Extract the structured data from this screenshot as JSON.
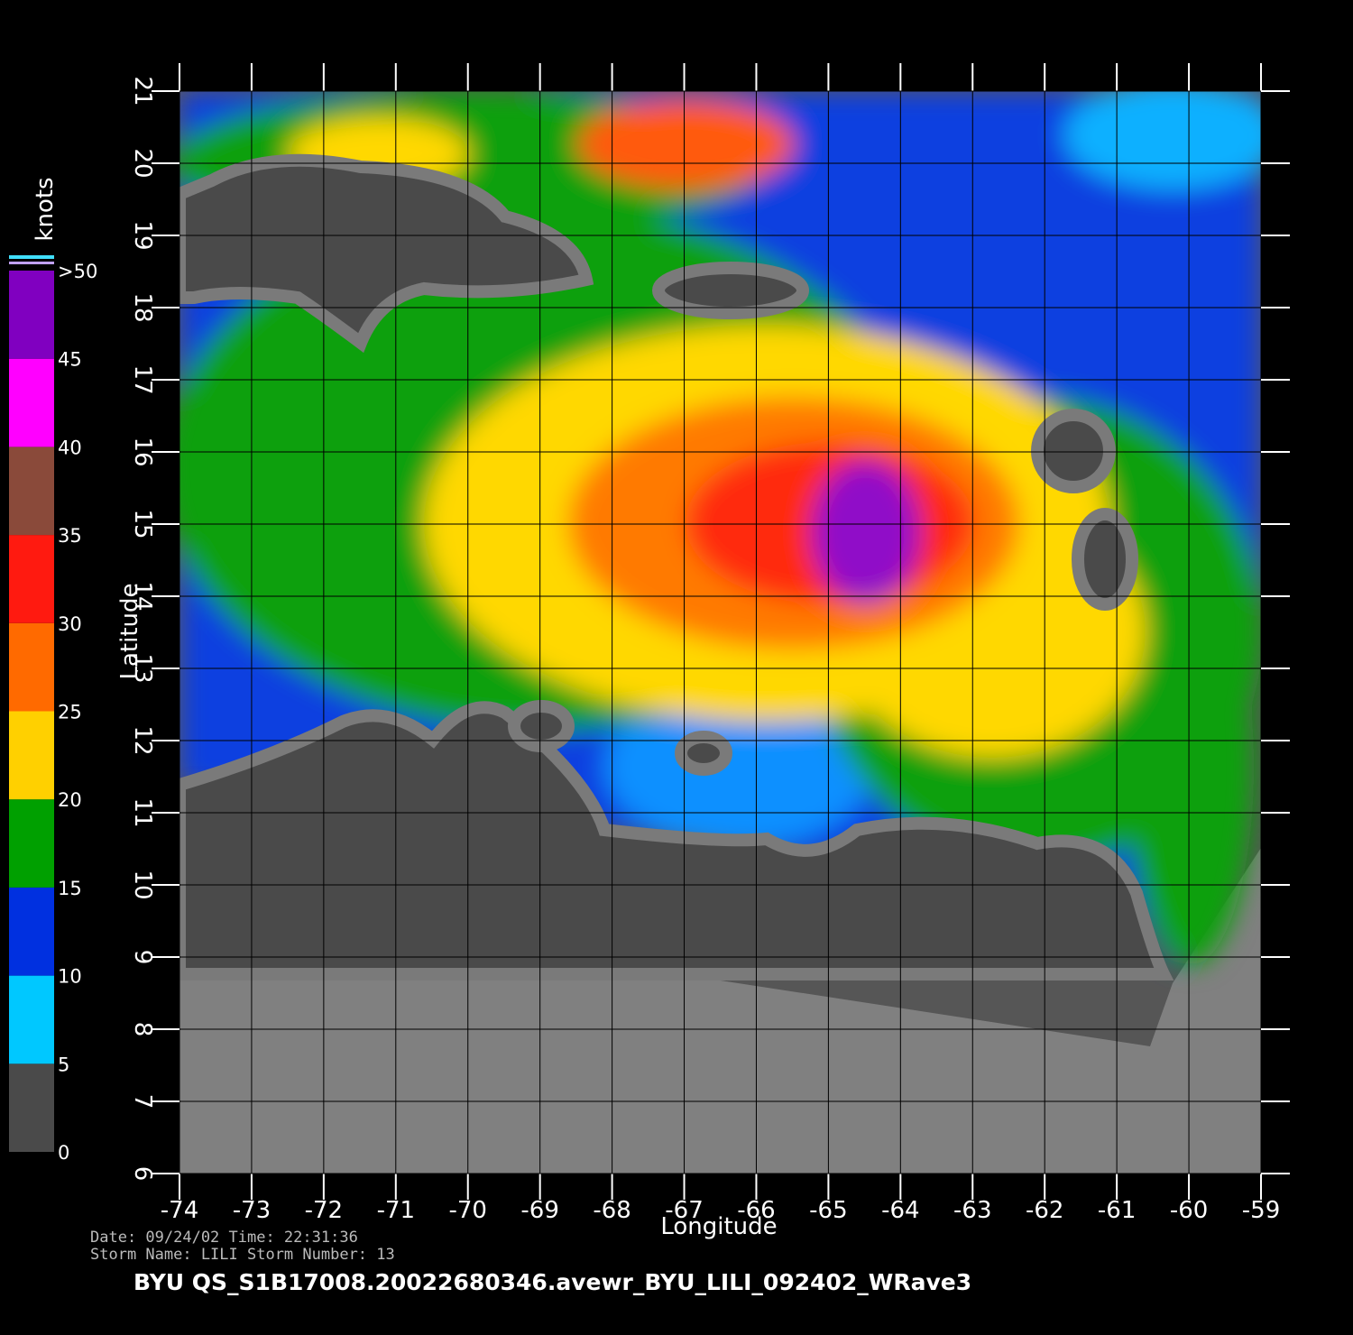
{
  "map": {
    "xlabel": "Longitude",
    "ylabel": "Latitude",
    "xlim": [
      -74,
      -59
    ],
    "ylim": [
      6,
      21
    ],
    "xticks": [
      -74,
      -73,
      -72,
      -71,
      -70,
      -69,
      -68,
      -67,
      -66,
      -65,
      -64,
      -63,
      -62,
      -61,
      -60,
      -59
    ],
    "yticks": [
      6,
      7,
      8,
      9,
      10,
      11,
      12,
      13,
      14,
      15,
      16,
      17,
      18,
      19,
      20,
      21
    ],
    "grid": true,
    "colorbar": {
      "title": "knots",
      "lim": [
        0,
        50
      ],
      "ticks": [
        0,
        5,
        10,
        15,
        20,
        25,
        30,
        35,
        40,
        45,
        {
          "value": 50,
          "label": ">50"
        }
      ],
      "colors": [
        "#4a4a4a",
        "#00c8ff",
        "#0030e0",
        "#00a000",
        "#ffd000",
        "#ff6a00",
        "#ff1a10",
        "#8a4a3a",
        "#ff00ff",
        "#8000c0"
      ]
    },
    "footer": [
      "Date: 09/24/02   Time: 22:31:36",
      "Storm  Name: LILI   Storm  Number: 13"
    ],
    "caption": "BYU  QS_S1B17008.20022680346.avewr_BYU_LILI_092402_WRave3"
  }
}
